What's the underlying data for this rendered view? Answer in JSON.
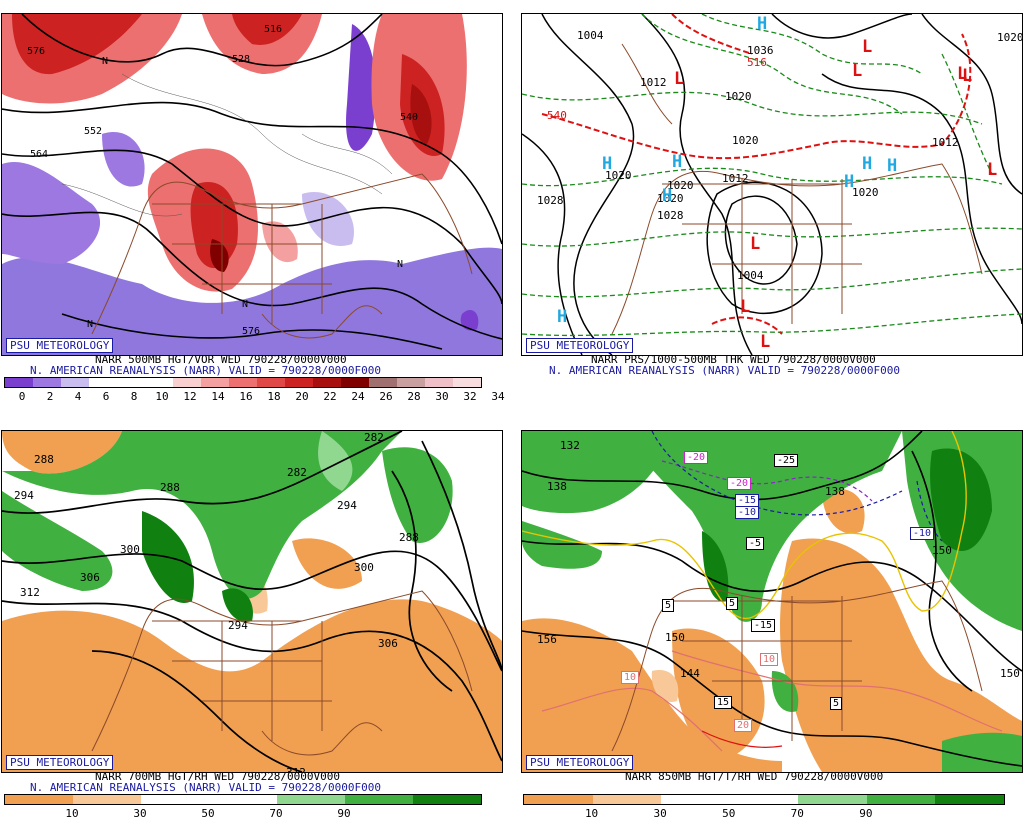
{
  "panels": [
    {
      "id": "p1",
      "badge": "PSU METEOROLOGY",
      "line1": "NARR 500MB HGT/VOR WED 790228/0000V000",
      "line2": "N. AMERICAN REANALYSIS (NARR) VALID = 790228/0000F000",
      "colorbar": {
        "colors": [
          "#7b3fd0",
          "#9c78e0",
          "#c9bdf0",
          "#ffffff",
          "#ffffff",
          "#ffffff",
          "#f9d0d0",
          "#f4a0a0",
          "#ec7070",
          "#e04848",
          "#cc2222",
          "#a81010",
          "#800000",
          "#a07070",
          "#c8a0a0",
          "#f0c0c8",
          "#f8dde0"
        ],
        "labels": [
          "0",
          "2",
          "4",
          "6",
          "8",
          "10",
          "12",
          "14",
          "16",
          "18",
          "20",
          "22",
          "24",
          "26",
          "28",
          "30",
          "32",
          "34"
        ]
      },
      "contour_labels": [
        "576",
        "528",
        "516",
        "552",
        "564",
        "540",
        "576",
        "N",
        "N",
        "N",
        "N"
      ]
    },
    {
      "id": "p2",
      "badge": "PSU METEOROLOGY",
      "line1": "NARR PRS/1000-500MB THK WED 790228/0000V000",
      "line2": "N. AMERICAN REANALYSIS (NARR) VALID = 790228/0000F000",
      "pressure_labels": [
        "1004",
        "1012",
        "1028",
        "1036",
        "1020",
        "1020",
        "1020",
        "1020",
        "1028",
        "1004",
        "1020",
        "1012",
        "1020",
        "1020",
        "1012",
        "540",
        "516"
      ],
      "highs": [
        "H",
        "H",
        "H",
        "H",
        "H",
        "H",
        "H",
        "H"
      ],
      "lows": [
        "L",
        "L",
        "L",
        "L",
        "L",
        "L",
        "L",
        "L",
        "L"
      ]
    },
    {
      "id": "p3",
      "badge": "PSU METEOROLOGY",
      "line1": "NARR 700MB HGT/RH WED 790228/0000V000",
      "line2": "N. AMERICAN REANALYSIS (NARR) VALID = 790228/0000F000",
      "colorbar": {
        "colors": [
          "#f0a050",
          "#f8c898",
          "#ffffff",
          "#ffffff",
          "#90d890",
          "#40b040",
          "#108010"
        ],
        "labels": [
          "10",
          "30",
          "50",
          "70",
          "90"
        ]
      },
      "contour_labels": [
        "288",
        "282",
        "294",
        "288",
        "282",
        "294",
        "300",
        "306",
        "312",
        "300",
        "294",
        "288",
        "306",
        "312"
      ]
    },
    {
      "id": "p4",
      "badge": "PSU METEOROLOGY",
      "line1": "NARR 850MB HGT/T/RH WED 790228/0000V000",
      "colorbar": {
        "colors": [
          "#f0a050",
          "#f8c898",
          "#ffffff",
          "#ffffff",
          "#90d890",
          "#40b040",
          "#108010"
        ],
        "labels": [
          "10",
          "30",
          "50",
          "70",
          "90"
        ]
      },
      "contour_labels": [
        "132",
        "138",
        "138",
        "150",
        "156",
        "150",
        "144",
        "150"
      ],
      "temp_boxes": [
        "-20",
        "-20",
        "-25",
        "-15",
        "-10",
        "-5",
        "5",
        "5",
        "-15",
        "-10",
        "15",
        "10",
        "5",
        "20",
        "-10"
      ]
    }
  ]
}
